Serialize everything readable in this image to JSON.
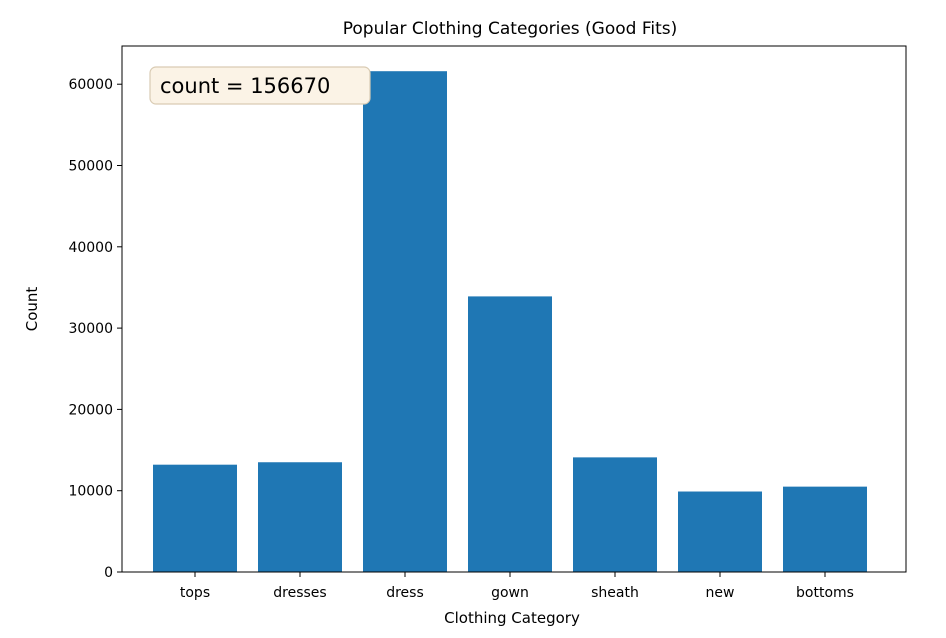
{
  "chart_data": {
    "type": "bar",
    "title": "Popular Clothing Categories (Good Fits)",
    "xlabel": "Clothing Category",
    "ylabel": "Count",
    "categories": [
      "tops",
      "dresses",
      "dress",
      "gown",
      "sheath",
      "new",
      "bottoms"
    ],
    "values": [
      13200,
      13500,
      61600,
      33900,
      14100,
      9900,
      10500
    ],
    "ylim": [
      0,
      64700
    ],
    "yticks": [
      0,
      10000,
      20000,
      30000,
      40000,
      50000,
      60000
    ],
    "ytick_labels": [
      "0",
      "10000",
      "20000",
      "30000",
      "40000",
      "50000",
      "60000"
    ],
    "grid": false,
    "bar_color": "#1f77b4",
    "annotation": {
      "text": "count = 156670",
      "placement": "top-left",
      "box_face": "#fbf3e6",
      "box_edge": "#d9cbb3"
    }
  }
}
